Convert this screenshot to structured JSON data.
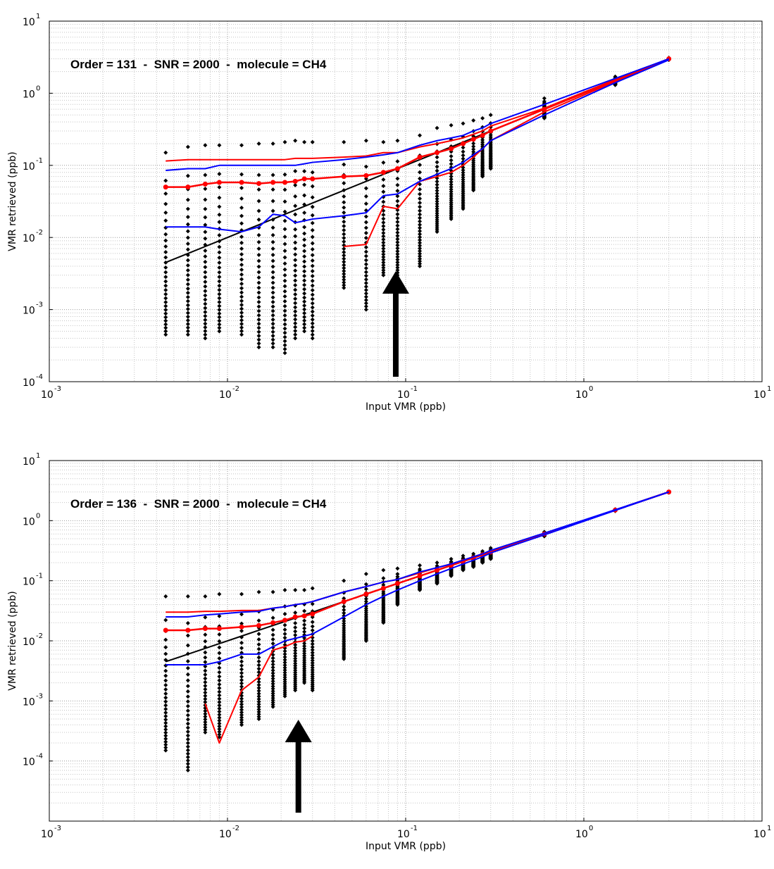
{
  "chart_data": [
    {
      "type": "scatter",
      "annotation": "Order = 131  -  SNR = 2000  -  molecule = CH4",
      "xlabel": "Input VMR (ppb)",
      "ylabel": "VMR retrieved (ppb)",
      "xscale": "log",
      "yscale": "log",
      "xlim": [
        0.001,
        10
      ],
      "ylim": [
        0.0001,
        10
      ],
      "x_ticks": [
        "10^-3",
        "10^-2",
        "10^-1",
        "10^0",
        "10^1"
      ],
      "y_ticks": [
        "10^-4",
        "10^-3",
        "10^-2",
        "10^-1",
        "10^0",
        "10^1"
      ],
      "grid": "on",
      "arrow_x": 0.088,
      "x": [
        0.0045,
        0.006,
        0.0075,
        0.009,
        0.012,
        0.015,
        0.018,
        0.021,
        0.024,
        0.027,
        0.03,
        0.045,
        0.06,
        0.075,
        0.09,
        0.12,
        0.15,
        0.18,
        0.21,
        0.24,
        0.27,
        0.3,
        0.6,
        1.5,
        3.0
      ],
      "scatter_range": [
        [
          0.00045,
          0.15
        ],
        [
          0.00045,
          0.18
        ],
        [
          0.0004,
          0.19
        ],
        [
          0.0005,
          0.19
        ],
        [
          0.00045,
          0.19
        ],
        [
          0.0003,
          0.2
        ],
        [
          0.0003,
          0.2
        ],
        [
          0.00025,
          0.21
        ],
        [
          0.0004,
          0.22
        ],
        [
          0.0005,
          0.21
        ],
        [
          0.0004,
          0.21
        ],
        [
          0.002,
          0.21
        ],
        [
          0.001,
          0.22
        ],
        [
          0.003,
          0.21
        ],
        [
          0.003,
          0.22
        ],
        [
          0.004,
          0.26
        ],
        [
          0.012,
          0.33
        ],
        [
          0.018,
          0.36
        ],
        [
          0.025,
          0.38
        ],
        [
          0.045,
          0.42
        ],
        [
          0.07,
          0.45
        ],
        [
          0.09,
          0.5
        ],
        [
          0.45,
          0.85
        ],
        [
          1.3,
          1.7
        ],
        [
          2.9,
          3.1
        ]
      ],
      "series": [
        {
          "role": "truth",
          "color": "#000000",
          "values": [
            0.0045,
            0.006,
            0.0075,
            0.009,
            0.012,
            0.015,
            0.018,
            0.021,
            0.024,
            0.027,
            0.03,
            0.045,
            0.06,
            0.075,
            0.09,
            0.12,
            0.15,
            0.18,
            0.21,
            0.24,
            0.27,
            0.3,
            0.6,
            1.5,
            3.0
          ]
        },
        {
          "role": "median",
          "color": "#ff0000",
          "values": [
            0.05,
            0.05,
            0.055,
            0.058,
            0.058,
            0.056,
            0.058,
            0.058,
            0.06,
            0.065,
            0.065,
            0.07,
            0.072,
            0.08,
            0.09,
            0.13,
            0.15,
            0.17,
            0.2,
            0.23,
            0.26,
            0.3,
            0.6,
            1.5,
            3.0
          ]
        },
        {
          "role": "upper",
          "color": "#ff0000",
          "values": [
            0.115,
            0.12,
            0.12,
            0.12,
            0.12,
            0.12,
            0.12,
            0.12,
            0.125,
            0.125,
            0.125,
            0.13,
            0.135,
            0.15,
            0.15,
            0.18,
            0.2,
            0.22,
            0.24,
            0.27,
            0.3,
            0.35,
            0.62,
            1.55,
            3.0
          ]
        },
        {
          "role": "lower",
          "color": "#ff0000",
          "values": [
            null,
            null,
            null,
            null,
            null,
            null,
            null,
            null,
            null,
            null,
            null,
            0.0075,
            0.008,
            0.027,
            0.025,
            0.06,
            0.07,
            0.08,
            0.1,
            0.13,
            0.17,
            0.22,
            0.55,
            1.45,
            2.95
          ]
        },
        {
          "role": "upper",
          "color": "#0000ff",
          "values": [
            0.085,
            0.09,
            0.09,
            0.1,
            0.1,
            0.1,
            0.1,
            0.1,
            0.1,
            0.105,
            0.11,
            0.12,
            0.13,
            0.14,
            0.15,
            0.19,
            0.22,
            0.24,
            0.26,
            0.3,
            0.33,
            0.38,
            0.7,
            1.6,
            3.0
          ]
        },
        {
          "role": "lower",
          "color": "#0000ff",
          "values": [
            0.014,
            0.014,
            0.014,
            0.013,
            0.012,
            0.014,
            0.021,
            0.02,
            0.016,
            0.017,
            0.018,
            0.02,
            0.022,
            0.038,
            0.04,
            0.06,
            0.075,
            0.09,
            0.11,
            0.14,
            0.17,
            0.22,
            0.5,
            1.4,
            2.9
          ]
        }
      ]
    },
    {
      "type": "scatter",
      "annotation": "Order = 136  -  SNR = 2000  -  molecule = CH4",
      "xlabel": "Input VMR (ppb)",
      "ylabel": "VMR retrieved (ppb)",
      "xscale": "log",
      "yscale": "log",
      "xlim": [
        0.001,
        10
      ],
      "ylim": [
        1e-05,
        10
      ],
      "x_ticks": [
        "10^-3",
        "10^-2",
        "10^-1",
        "10^0",
        "10^1"
      ],
      "y_ticks": [
        "10^-4",
        "10^-3",
        "10^-2",
        "10^-1",
        "10^0",
        "10^1"
      ],
      "grid": "on",
      "arrow_x": 0.025,
      "x": [
        0.0045,
        0.006,
        0.0075,
        0.009,
        0.012,
        0.015,
        0.018,
        0.021,
        0.024,
        0.027,
        0.03,
        0.045,
        0.06,
        0.075,
        0.09,
        0.12,
        0.15,
        0.18,
        0.21,
        0.24,
        0.27,
        0.3,
        0.6,
        1.5,
        3.0
      ],
      "scatter_range": [
        [
          0.00015,
          0.055
        ],
        [
          7e-05,
          0.055
        ],
        [
          0.0003,
          0.055
        ],
        [
          0.00025,
          0.06
        ],
        [
          0.0004,
          0.06
        ],
        [
          0.0005,
          0.065
        ],
        [
          0.0008,
          0.065
        ],
        [
          0.0012,
          0.07
        ],
        [
          0.0015,
          0.07
        ],
        [
          0.002,
          0.07
        ],
        [
          0.0015,
          0.075
        ],
        [
          0.005,
          0.1
        ],
        [
          0.01,
          0.13
        ],
        [
          0.02,
          0.15
        ],
        [
          0.04,
          0.16
        ],
        [
          0.07,
          0.18
        ],
        [
          0.09,
          0.2
        ],
        [
          0.12,
          0.23
        ],
        [
          0.15,
          0.26
        ],
        [
          0.17,
          0.28
        ],
        [
          0.2,
          0.31
        ],
        [
          0.23,
          0.35
        ],
        [
          0.55,
          0.65
        ],
        [
          1.45,
          1.55
        ],
        [
          2.95,
          3.05
        ]
      ],
      "series": [
        {
          "role": "truth",
          "color": "#000000",
          "values": [
            0.0045,
            0.006,
            0.0075,
            0.009,
            0.012,
            0.015,
            0.018,
            0.021,
            0.024,
            0.027,
            0.03,
            0.045,
            0.06,
            0.075,
            0.09,
            0.12,
            0.15,
            0.18,
            0.21,
            0.24,
            0.27,
            0.3,
            0.6,
            1.5,
            3.0
          ]
        },
        {
          "role": "median",
          "color": "#ff0000",
          "values": [
            0.015,
            0.015,
            0.016,
            0.016,
            0.017,
            0.018,
            0.02,
            0.022,
            0.025,
            0.026,
            0.028,
            0.045,
            0.06,
            0.075,
            0.09,
            0.12,
            0.15,
            0.18,
            0.21,
            0.24,
            0.27,
            0.3,
            0.6,
            1.5,
            3.0
          ]
        },
        {
          "role": "upper",
          "color": "#ff0000",
          "values": [
            0.03,
            0.03,
            0.031,
            0.031,
            0.032,
            0.032,
            0.035,
            0.037,
            0.04,
            0.042,
            0.045,
            0.065,
            0.08,
            0.095,
            0.105,
            0.135,
            0.165,
            0.19,
            0.22,
            0.25,
            0.28,
            0.31,
            0.6,
            1.5,
            3.0
          ]
        },
        {
          "role": "lower",
          "color": "#ff0000",
          "values": [
            null,
            null,
            0.0009,
            0.0002,
            0.0015,
            0.0025,
            0.007,
            0.008,
            0.0095,
            0.01,
            0.012,
            null,
            null,
            null,
            null,
            null,
            null,
            null,
            null,
            null,
            null,
            null,
            null,
            null,
            null
          ]
        },
        {
          "role": "upper",
          "color": "#0000ff",
          "values": [
            0.025,
            0.025,
            0.027,
            0.028,
            0.03,
            0.031,
            0.035,
            0.037,
            0.04,
            0.042,
            0.045,
            0.065,
            0.08,
            0.095,
            0.105,
            0.14,
            0.165,
            0.19,
            0.22,
            0.25,
            0.28,
            0.32,
            0.62,
            1.52,
            3.0
          ]
        },
        {
          "role": "lower",
          "color": "#0000ff",
          "values": [
            0.004,
            0.004,
            0.004,
            0.0045,
            0.006,
            0.006,
            0.008,
            0.01,
            0.011,
            0.012,
            0.013,
            0.025,
            0.04,
            0.055,
            0.07,
            0.1,
            0.13,
            0.16,
            0.19,
            0.22,
            0.25,
            0.29,
            0.58,
            1.48,
            3.0
          ]
        }
      ]
    }
  ]
}
